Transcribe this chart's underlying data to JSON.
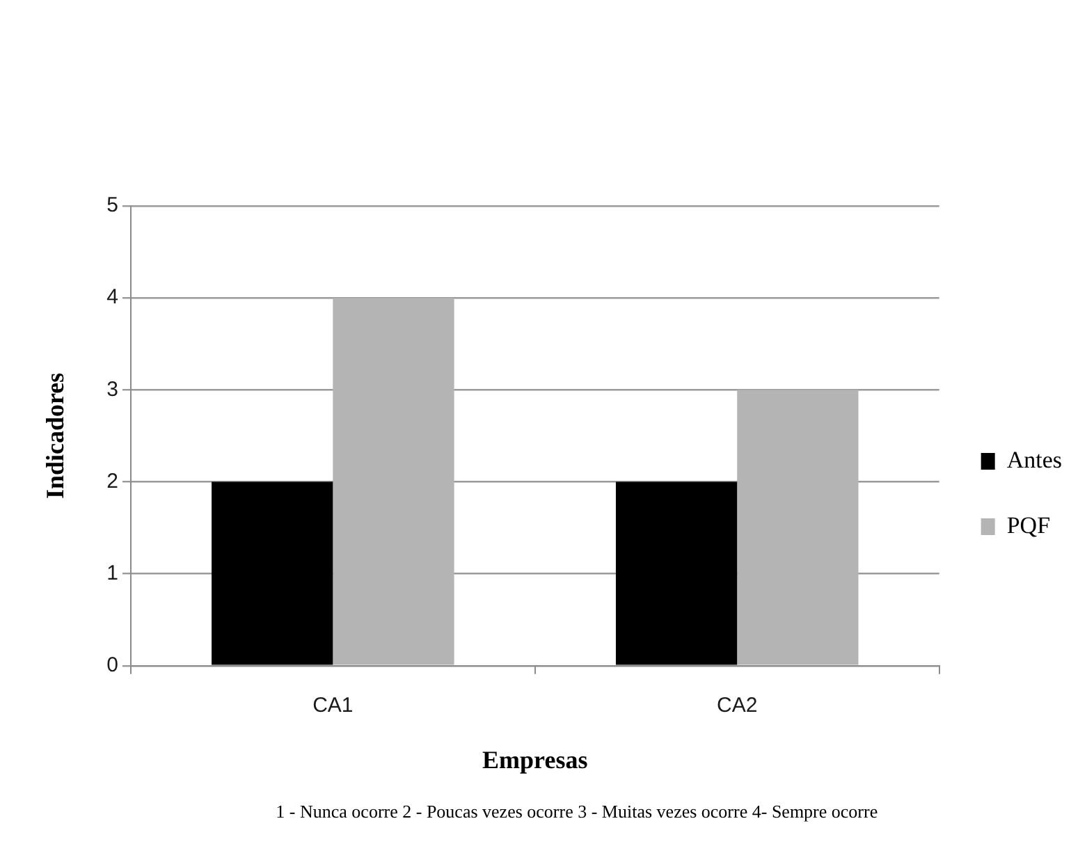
{
  "chart_data": {
    "type": "bar",
    "categories": [
      "CA1",
      "CA2"
    ],
    "series": [
      {
        "name": "Antes",
        "color": "#000000",
        "values": [
          2,
          2
        ]
      },
      {
        "name": "PQF",
        "color": "#b4b4b4",
        "values": [
          4,
          3
        ]
      }
    ],
    "xlabel": "Empresas",
    "ylabel": "Indicadores",
    "ylim": [
      0,
      5
    ],
    "yticks": [
      0,
      1,
      2,
      3,
      4,
      5
    ],
    "grid": "y",
    "legend": "right",
    "annotations": [
      "1 - Nunca ocorre 2 - Poucas vezes ocorre 3 - Muitas vezes ocorre 4- Sempre ocorre"
    ]
  }
}
